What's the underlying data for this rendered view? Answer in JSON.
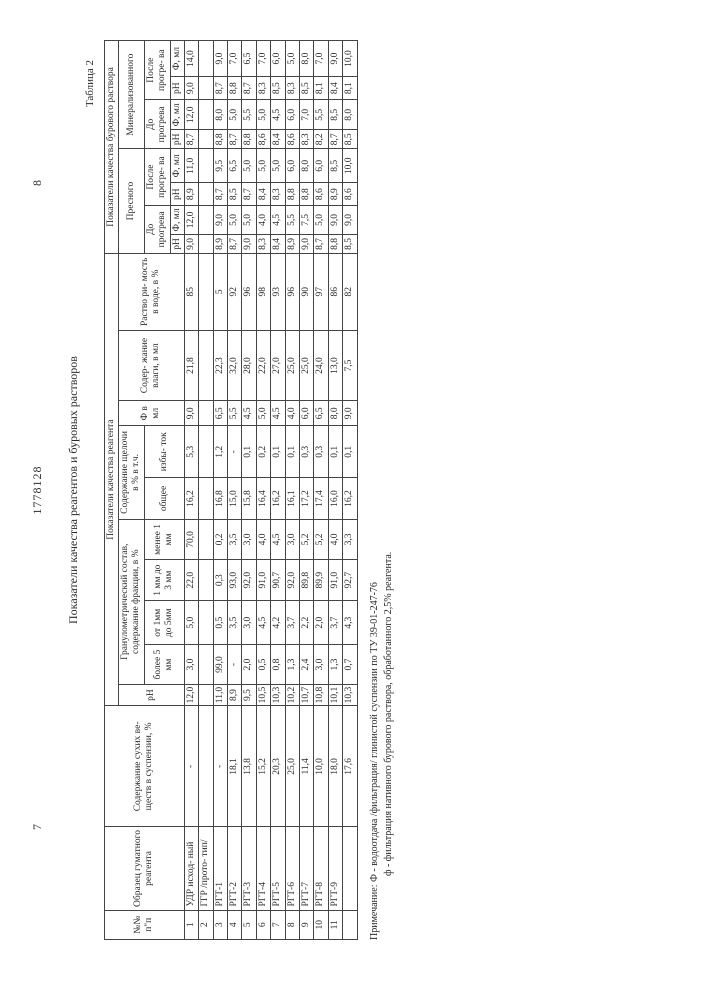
{
  "header": {
    "page_left": "7",
    "doc_number": "1778128",
    "page_right": "8"
  },
  "title": "Показатели качества реагентов и буровых растворов",
  "table_label": "Таблица 2",
  "columns": {
    "c1": "№№\nп\"п",
    "c2": "Образец\nгуматного\nреагента",
    "c3": "Содержание\nсухих ве-\nществ в\nсуспензии,\n%",
    "c4_group": "Показатели качества реагента",
    "c4_ph": "рН",
    "c4_gran_group": "Гранулометрический\nсостав, содержание\nфракции, в %",
    "c4_gran_1": "более\n5 мм",
    "c4_gran_2": "от 1мм\nдо 5мм",
    "c4_gran_3": "1 мм\nдо\n3 мм",
    "c4_gran_4": "менее\n1 мм",
    "c4_alk_group": "Содержание щелочи\nв % в т.ч.",
    "c4_alk_1": "общее",
    "c4_alk_2": "избы-\nток",
    "c4_f": "Ф\nв мл",
    "c4_vl": "Содер-\nжание\nвлаги,\nв мл",
    "c4_sol": "Раство\nри-\nмость\nв воде,\nв %",
    "c5_group": "Показатели качества бурового раствора",
    "c5_fresh": "Пресного",
    "c5_min": "Минерализованного",
    "c5_before": "До прогрева",
    "c5_after": "После прогре-\nва",
    "c5_ph": "рН",
    "c5_f": "Ф, мл"
  },
  "rows": [
    {
      "n": "1",
      "s": "УДР исход-\nный",
      "dry": "-",
      "ph": "12,0",
      "g1": "3,0",
      "g2": "5,0",
      "g3": "22,0",
      "g4": "70,0",
      "alk1": "16,2",
      "alk2": "5,3",
      "f": "9,0",
      "vl": "21,8",
      "sol": "85",
      "p1": "9,0",
      "p2": "12,0",
      "p3": "8,9",
      "p4": "11,0",
      "m1": "8,7",
      "m2": "12,0",
      "m3": "9,0",
      "m4": "14,0"
    },
    {
      "n": "2",
      "s": "ГГР /прото-\nтип/",
      "dry": "",
      "ph": "",
      "g1": "",
      "g2": "",
      "g3": "",
      "g4": "",
      "alk1": "",
      "alk2": "",
      "f": "",
      "vl": "",
      "sol": "",
      "p1": "",
      "p2": "",
      "p3": "",
      "p4": "",
      "m1": "",
      "m2": "",
      "m3": "",
      "m4": ""
    },
    {
      "n": "3",
      "s": "РГТ-1",
      "dry": "-",
      "ph": "11,0",
      "g1": "99,0",
      "g2": "0,5",
      "g3": "0,3",
      "g4": "0,2",
      "alk1": "16,8",
      "alk2": "1,2",
      "f": "6,5",
      "vl": "22,3",
      "sol": "5",
      "p1": "8,9",
      "p2": "9,0",
      "p3": "8,7",
      "p4": "9,5",
      "m1": "8,8",
      "m2": "8,0",
      "m3": "8,7",
      "m4": "9,0"
    },
    {
      "n": "4",
      "s": "РГТ-2",
      "dry": "18,1",
      "ph": "8,9",
      "g1": "-",
      "g2": "3,5",
      "g3": "93,0",
      "g4": "3,5",
      "alk1": "15,0",
      "alk2": "-",
      "f": "5,5",
      "vl": "32,0",
      "sol": "92",
      "p1": "8,7",
      "p2": "5,0",
      "p3": "8,5",
      "p4": "6,5",
      "m1": "8,7",
      "m2": "5,0",
      "m3": "8,8",
      "m4": "7,0"
    },
    {
      "n": "5",
      "s": "РГТ-3",
      "dry": "13,8",
      "ph": "9,5",
      "g1": "2,0",
      "g2": "3,0",
      "g3": "92,0",
      "g4": "3,0",
      "alk1": "15,8",
      "alk2": "0,1",
      "f": "4,5",
      "vl": "28,0",
      "sol": "96",
      "p1": "9,0",
      "p2": "5,0",
      "p3": "8,7",
      "p4": "5,0",
      "m1": "8,8",
      "m2": "5,5",
      "m3": "8,7",
      "m4": "6,5"
    },
    {
      "n": "6",
      "s": "РГТ-4",
      "dry": "15,2",
      "ph": "10,5",
      "g1": "0,5",
      "g2": "4,5",
      "g3": "91,0",
      "g4": "4,0",
      "alk1": "16,4",
      "alk2": "0,2",
      "f": "5,0",
      "vl": "22,0",
      "sol": "98",
      "p1": "8,3",
      "p2": "4,0",
      "p3": "8,4",
      "p4": "5,0",
      "m1": "8,6",
      "m2": "5,0",
      "m3": "8,3",
      "m4": "7,0"
    },
    {
      "n": "7",
      "s": "РГТ-5",
      "dry": "20,3",
      "ph": "10,3",
      "g1": "0,8",
      "g2": "4,2",
      "g3": "90,7",
      "g4": "4,5",
      "alk1": "16,2",
      "alk2": "0,1",
      "f": "4,5",
      "vl": "27,0",
      "sol": "93",
      "p1": "8,4",
      "p2": "4,5",
      "p3": "8,3",
      "p4": "5,0",
      "m1": "8,4",
      "m2": "4,5",
      "m3": "8,5",
      "m4": "6,0"
    },
    {
      "n": "8",
      "s": "РГТ-6",
      "dry": "25,0",
      "ph": "10,2",
      "g1": "1,3",
      "g2": "3,7",
      "g3": "92,0",
      "g4": "3,0",
      "alk1": "16,1",
      "alk2": "0,1",
      "f": "4,0",
      "vl": "25,0",
      "sol": "96",
      "p1": "8,9",
      "p2": "5,5",
      "p3": "8,8",
      "p4": "6,0",
      "m1": "8,6",
      "m2": "6,0",
      "m3": "8,3",
      "m4": "5,0"
    },
    {
      "n": "9",
      "s": "РГТ-7",
      "dry": "11,4",
      "ph": "10,7",
      "g1": "2,4",
      "g2": "2,2",
      "g3": "89,8",
      "g4": "5,2",
      "alk1": "17,2",
      "alk2": "0,3",
      "f": "6,0",
      "vl": "25,0",
      "sol": "90",
      "p1": "9,0",
      "p2": "7,5",
      "p3": "8,8",
      "p4": "8,0",
      "m1": "8,3",
      "m2": "7,0",
      "m3": "8,5",
      "m4": "8,0"
    },
    {
      "n": "10",
      "s": "РГТ-8",
      "dry": "10,0",
      "ph": "10,8",
      "g1": "3,0",
      "g2": "2,0",
      "g3": "89,9",
      "g4": "5,2",
      "alk1": "17,4",
      "alk2": "0,3",
      "f": "6,5",
      "vl": "24,0",
      "sol": "97",
      "p1": "8,7",
      "p2": "5,0",
      "p3": "8,6",
      "p4": "6,0",
      "m1": "8,2",
      "m2": "5,5",
      "m3": "8,1",
      "m4": "7,0"
    },
    {
      "n": "11",
      "s": "РГТ-9",
      "dry": "18,0",
      "ph": "10,1",
      "g1": "1,3",
      "g2": "3,7",
      "g3": "91,0",
      "g4": "4,0",
      "alk1": "16,0",
      "alk2": "0,1",
      "f": "8,0",
      "vl": "13,0",
      "sol": "86",
      "p1": "8,8",
      "p2": "9,0",
      "p3": "8,9",
      "p4": "8,5",
      "m1": "8,7",
      "m2": "8,5",
      "m3": "8,4",
      "m4": "9,0"
    },
    {
      "n": "",
      "s": "",
      "dry": "17,6",
      "ph": "10,3",
      "g1": "0,7",
      "g2": "4,3",
      "g3": "92,7",
      "g4": "3,3",
      "alk1": "16,2",
      "alk2": "0,1",
      "f": "9,0",
      "vl": "7,5",
      "sol": "82",
      "p1": "8,5",
      "p2": "9,0",
      "p3": "8,6",
      "p4": "10,0",
      "m1": "8,5",
      "m2": "8,0",
      "m3": "8,1",
      "m4": "10,0"
    }
  ],
  "footnote": {
    "label": "Примечание:",
    "line1": "Ф - водоотдача /фильтрация/ глинистой суспензии по ТУ 39-01-247-76",
    "line2": "ф - фильтрация нативного бурового раствора, обработанного 2,5% реагента."
  }
}
